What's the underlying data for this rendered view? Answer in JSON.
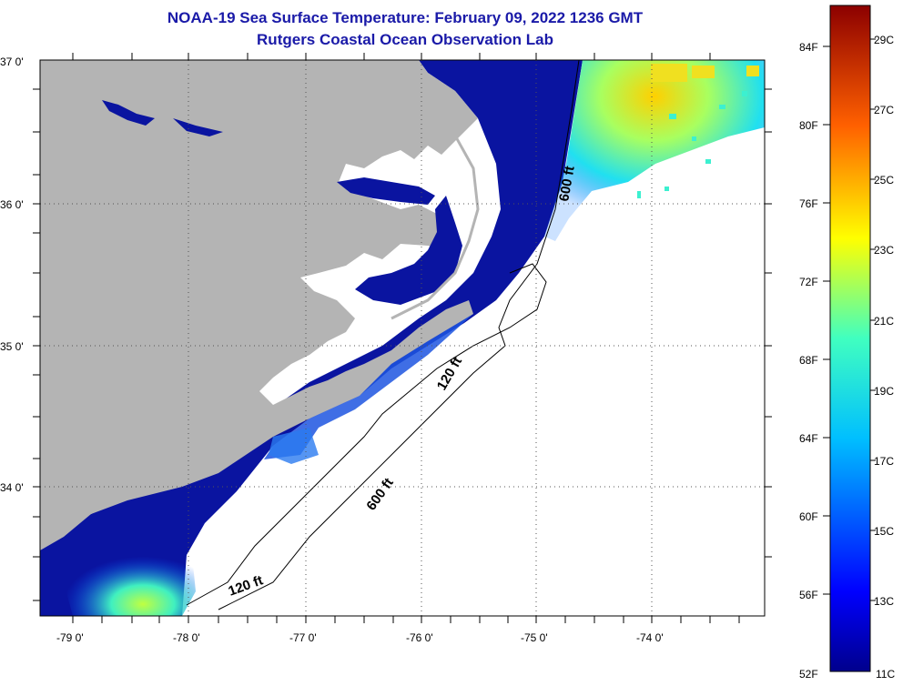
{
  "title": {
    "line1": "NOAA-19 Sea Surface Temperature:  February 09, 2022 1236 GMT",
    "line2": "Rutgers Coastal Ocean Observation Lab"
  },
  "map": {
    "lat_labels": [
      "37 0'",
      "36 0'",
      "35 0'",
      "34 0'"
    ],
    "lon_labels": [
      "-79 0'",
      "-78 0'",
      "-77 0'",
      "-76 0'",
      "-75 0'",
      "-74 0'"
    ],
    "contour_labels": [
      "600 ft",
      "120 ft",
      "600 ft",
      "120 ft"
    ],
    "colors": {
      "land": "#b4b4b4",
      "cold_water": "#0a14a0",
      "no_data": "#ffffff"
    }
  },
  "colorbar": {
    "fahrenheit_labels": [
      "84F",
      "80F",
      "76F",
      "72F",
      "68F",
      "64F",
      "60F",
      "56F",
      "52F"
    ],
    "celsius_labels": [
      "29C",
      "27C",
      "25C",
      "23C",
      "21C",
      "19C",
      "17C",
      "15C",
      "13C",
      "11C"
    ]
  }
}
